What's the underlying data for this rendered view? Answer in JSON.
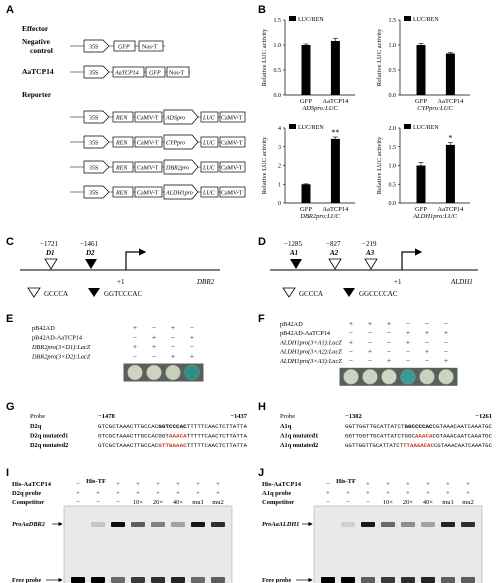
{
  "panels": {
    "A": "A",
    "B": "B",
    "C": "C",
    "D": "D",
    "E": "E",
    "F": "F",
    "G": "G",
    "H": "H",
    "I": "I",
    "J": "J"
  },
  "panelA": {
    "effector_title": "Effector",
    "neg_label_1": "Negative",
    "neg_label_2": "control",
    "aatcp14_label": "AaTCP14",
    "reporter_title": "Reporter",
    "p35s": "35S",
    "gfp": "GFP",
    "nos": "Nos-T",
    "aatcp14_gene": "AaTCP14",
    "ren": "REN",
    "camv": "CaMV-T",
    "luc": "LUC",
    "promoters": [
      "ADSpro",
      "CYPpro",
      "DBR2pro",
      "ALDH1pro"
    ]
  },
  "chart_data": [
    {
      "type": "bar",
      "legend": "LUC/REN",
      "ylabel": "Relative LUC activity",
      "categories": [
        "GFP",
        "AaTCP14"
      ],
      "values": [
        1.0,
        1.08
      ],
      "errors": [
        0.02,
        0.05
      ],
      "ylim": [
        0,
        1.5
      ],
      "yticks": [
        "0.0",
        "0.5",
        "1.0",
        "1.5"
      ],
      "xlabel": "ADSpro:LUC",
      "sig": ""
    },
    {
      "type": "bar",
      "legend": "LUC/REN",
      "ylabel": "Relative LUC activity",
      "categories": [
        "GFP",
        "AaTCP14"
      ],
      "values": [
        1.0,
        0.83
      ],
      "errors": [
        0.03,
        0.02
      ],
      "ylim": [
        0,
        1.5
      ],
      "yticks": [
        "0.0",
        "0.5",
        "1.0",
        "1.5"
      ],
      "xlabel": "CYPpro:LUC",
      "sig": ""
    },
    {
      "type": "bar",
      "legend": "LUC/REN",
      "ylabel": "Relative LUC activity",
      "categories": [
        "GFP",
        "AaTCP14"
      ],
      "values": [
        1.0,
        3.42
      ],
      "errors": [
        0.02,
        0.1
      ],
      "ylim": [
        0,
        4
      ],
      "yticks": [
        "0",
        "1",
        "2",
        "3",
        "4"
      ],
      "xlabel": "DBR2pro:LUC",
      "sig": "**"
    },
    {
      "type": "bar",
      "legend": "LUC/REN",
      "ylabel": "Relative LUC activity",
      "categories": [
        "GFP",
        "AaTCP14"
      ],
      "values": [
        1.0,
        1.55
      ],
      "errors": [
        0.08,
        0.06
      ],
      "ylim": [
        0,
        2.0
      ],
      "yticks": [
        "0.0",
        "0.5",
        "1.0",
        "1.5",
        "2.0"
      ],
      "xlabel": "ALDH1pro:LUC",
      "sig": "*"
    }
  ],
  "panelC": {
    "pos1": "−1721",
    "pos2": "−1461",
    "d1": "D1",
    "d2": "D2",
    "plus1": "+1",
    "gene": "DBR2",
    "leg1": "GCCCA",
    "leg2": "GGTCCCAC"
  },
  "panelD": {
    "pos1": "−1285",
    "pos2": "−827",
    "pos3": "−219",
    "a1": "A1",
    "a2": "A2",
    "a3": "A3",
    "plus1": "+1",
    "gene": "ALDH1",
    "leg1": "GCCCA",
    "leg2": "GGCCCCAC"
  },
  "panelE": {
    "rows": [
      "pB42AD",
      "pB42AD-AaTCP14",
      "DBR2pro(3×D1):LacZ",
      "DBR2pro(3×D2):LacZ"
    ],
    "signs": [
      [
        "+",
        "−",
        "+",
        "−"
      ],
      [
        "−",
        "+",
        "−",
        "+"
      ],
      [
        "+",
        "+",
        "−",
        "−"
      ],
      [
        "−",
        "−",
        "+",
        "+"
      ]
    ],
    "spots": [
      "#cfd4bf",
      "#ced3c0",
      "#c7cfb9",
      "#2f8f8a"
    ]
  },
  "panelF": {
    "rows": [
      "pB42AD",
      "pB42AD-AaTCP14",
      "ALDH1pro(3×A1):LacZ",
      "ALDH1pro(3×A2):LacZ",
      "ALDH1pro(3×A3):LacZ"
    ],
    "signs": [
      [
        "+",
        "+",
        "+",
        "−",
        "−",
        "−"
      ],
      [
        "−",
        "−",
        "−",
        "+",
        "+",
        "+"
      ],
      [
        "+",
        "−",
        "−",
        "+",
        "−",
        "−"
      ],
      [
        "−",
        "+",
        "−",
        "−",
        "+",
        "−"
      ],
      [
        "−",
        "−",
        "+",
        "−",
        "−",
        "+"
      ]
    ],
    "spots": [
      "#cdd3c2",
      "#cdd3c2",
      "#cfd6c4",
      "#3c9a94",
      "#c8d0bf",
      "#cbd3c2"
    ]
  },
  "panelG": {
    "probe_label": "Probe",
    "start": "−1478",
    "end": "−1437",
    "rows": [
      {
        "name": "D2q",
        "pre": "GTCGCTAAACTTGCCAC",
        "mid": "GGTCCCAC",
        "post": "TTTTTCAACTCTTATTA",
        "mid_color": "#000"
      },
      {
        "name": "D2q mutated1",
        "pre": "GTCGCTAAACTTGCCACGGT",
        "mid": "AAACA",
        "post": "TTTTTCAACTCTTATTA",
        "mid_color": "#d03020"
      },
      {
        "name": "D2q mutated2",
        "pre": "GTCGCTAAACTTGCCAC",
        "mid": "GTTGAAAC",
        "post": "TTTTTCAACTCTTATTA",
        "mid_color": "#d03020"
      }
    ]
  },
  "panelH": {
    "probe_label": "Probe",
    "start": "−1302",
    "end": "−1261",
    "rows": [
      {
        "name": "A1q",
        "pre": "GGTTGGTTGCATTATCT",
        "mid": "GGCCCCAC",
        "post": "CGTAAACAATCAAATGC",
        "mid_color": "#000"
      },
      {
        "name": "A1q mutated1",
        "pre": "GGTTGGTTGCATTATCTGGC",
        "mid": "AAACA",
        "post": "CGTAAACAATCAAATGC",
        "mid_color": "#d03020"
      },
      {
        "name": "A1q mutated2",
        "pre": "GGTTGGTTGCATTATCT",
        "mid": "TTAAAACAC",
        "post": "CGTAAACAATCAAATGC",
        "mid_color": "#d03020"
      }
    ]
  },
  "panelI": {
    "rows": [
      "His-AaTCP14",
      "D2q probe",
      "Competitor"
    ],
    "his_tf": "His-TF",
    "protein": [
      "−",
      "",
      "+",
      "+",
      "+",
      "+",
      "+",
      "+"
    ],
    "probe": [
      "+",
      "+",
      "+",
      "+",
      "+",
      "+",
      "+",
      "+"
    ],
    "competitor": [
      "−",
      "−",
      "−",
      "10×",
      "20×",
      "40×",
      "mu1",
      "mu2"
    ],
    "band_label": "ProAaDBR2",
    "free_label": "Free probe",
    "shift": [
      0,
      0.15,
      0.95,
      0.6,
      0.45,
      0.3,
      0.9,
      0.8
    ],
    "free": [
      1,
      1,
      0.55,
      0.75,
      0.8,
      0.85,
      0.55,
      0.6
    ]
  },
  "panelJ": {
    "rows": [
      "His-AaTCP14",
      "A1q probe",
      "Competitor"
    ],
    "his_tf": "His-TF",
    "protein": [
      "−",
      "",
      "+",
      "+",
      "+",
      "+",
      "+",
      "+"
    ],
    "probe": [
      "+",
      "+",
      "+",
      "+",
      "+",
      "+",
      "+",
      "+"
    ],
    "competitor": [
      "−",
      "−",
      "−",
      "10×",
      "20×",
      "40×",
      "mu1",
      "mu2"
    ],
    "band_label": "ProAaALDH1",
    "free_label": "Free probe",
    "shift": [
      0,
      0.1,
      0.9,
      0.55,
      0.4,
      0.3,
      0.85,
      0.8
    ],
    "free": [
      1,
      1,
      0.6,
      0.75,
      0.8,
      0.85,
      0.6,
      0.6
    ]
  }
}
